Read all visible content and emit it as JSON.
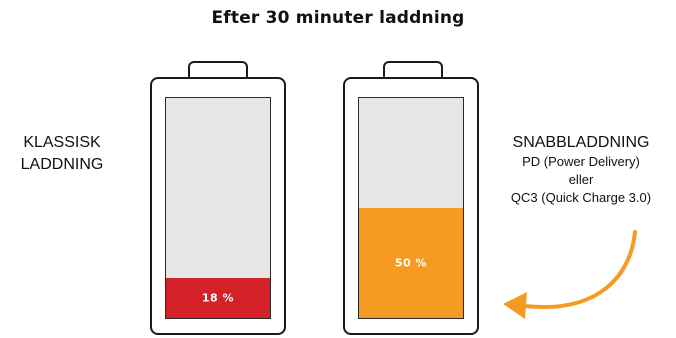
{
  "title": "Efter 30 minuter laddning",
  "left_label": {
    "line1": "KLASSISK",
    "line2": "LADDNING"
  },
  "right_label": {
    "line1": "SNABBLADDNING",
    "line2": "PD (Power Delivery)",
    "line3": "eller",
    "line4": "QC3 (Quick Charge 3.0)"
  },
  "batteries": [
    {
      "charge_percent": 18,
      "label": "18 %",
      "fill_color": "#d42027"
    },
    {
      "charge_percent": 50,
      "label": "50 %",
      "fill_color": "#f59b23"
    }
  ],
  "empty_color": "#e6e6e6",
  "arrow_color": "#f59b23"
}
